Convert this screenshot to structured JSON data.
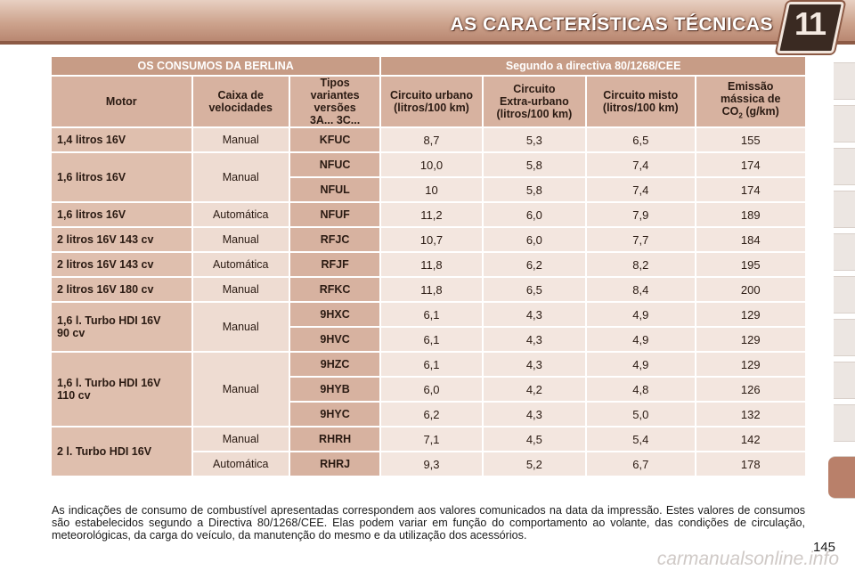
{
  "header": {
    "title": "AS CARACTERÍSTICAS TÉCNICAS",
    "chapter": "11"
  },
  "table": {
    "title_left": "OS CONSUMOS DA BERLINA",
    "title_right": "Segundo a directiva 80/1268/CEE",
    "columns": [
      "Motor",
      {
        "l1": "Caixa de",
        "l2": "velocidades"
      },
      {
        "l1": "Tipos",
        "l2": "variantes",
        "l3": "versões",
        "l4": "3A... 3C..."
      },
      {
        "l1": "Circuito urbano",
        "l2": "(litros/100 km)"
      },
      {
        "l1": "Circuito",
        "l2": "Extra-urbano",
        "l3": "(litros/100 km)"
      },
      {
        "l1": "Circuito misto",
        "l2": "(litros/100 km)"
      },
      {
        "l1": "Emissão",
        "l2": "mássica de",
        "l3a": "CO",
        "sub": "2",
        "l3b": " (g/km)"
      }
    ],
    "rows": [
      {
        "motor": "1,4 litros 16V",
        "caixa": "Manual",
        "code": "KFUC",
        "urbano": "8,7",
        "extra": "5,3",
        "misto": "6,5",
        "co2": "155"
      },
      {
        "motor": "1,6 litros 16V",
        "caixa": "Manual",
        "code": "NFUC",
        "urbano": "10,0",
        "extra": "5,8",
        "misto": "7,4",
        "co2": "174"
      },
      {
        "code": "NFUL",
        "urbano": "10",
        "extra": "5,8",
        "misto": "7,4",
        "co2": "174"
      },
      {
        "motor": "1,6 litros 16V",
        "caixa": "Automática",
        "code": "NFUF",
        "urbano": "11,2",
        "extra": "6,0",
        "misto": "7,9",
        "co2": "189"
      },
      {
        "motor": "2 litros 16V 143 cv",
        "caixa": "Manual",
        "code": "RFJC",
        "urbano": "10,7",
        "extra": "6,0",
        "misto": "7,7",
        "co2": "184"
      },
      {
        "motor": "2 litros 16V 143 cv",
        "caixa": "Automática",
        "code": "RFJF",
        "urbano": "11,8",
        "extra": "6,2",
        "misto": "8,2",
        "co2": "195"
      },
      {
        "motor": "2 litros 16V 180 cv",
        "caixa": "Manual",
        "code": "RFKC",
        "urbano": "11,8",
        "extra": "6,5",
        "misto": "8,4",
        "co2": "200"
      },
      {
        "motor_l1": "1,6 l. Turbo HDI 16V",
        "motor_l2": "90 cv",
        "caixa": "Manual",
        "code": "9HXC",
        "urbano": "6,1",
        "extra": "4,3",
        "misto": "4,9",
        "co2": "129"
      },
      {
        "code": "9HVC",
        "urbano": "6,1",
        "extra": "4,3",
        "misto": "4,9",
        "co2": "129"
      },
      {
        "motor_l1": "1,6 l. Turbo HDI 16V",
        "motor_l2": "110 cv",
        "caixa": "Manual",
        "code": "9HZC",
        "urbano": "6,1",
        "extra": "4,3",
        "misto": "4,9",
        "co2": "129"
      },
      {
        "code": "9HYB",
        "urbano": "6,0",
        "extra": "4,2",
        "misto": "4,8",
        "co2": "126"
      },
      {
        "code": "9HYC",
        "urbano": "6,2",
        "extra": "4,3",
        "misto": "5,0",
        "co2": "132"
      },
      {
        "motor": "2 l. Turbo HDI 16V",
        "caixa": "Manual",
        "code": "RHRH",
        "urbano": "7,1",
        "extra": "4,5",
        "misto": "5,4",
        "co2": "142"
      },
      {
        "caixa": "Automática",
        "code": "RHRJ",
        "urbano": "9,3",
        "extra": "5,2",
        "misto": "6,7",
        "co2": "178"
      }
    ]
  },
  "note": "As indicações de consumo de combustível apresentadas correspondem aos valores comunicados na data da impressão. Estes valores de consumos são estabelecidos segundo a Directiva 80/1268/CEE. Elas podem variar em função do comportamento ao volante, das condições de circulação, meteorológicas, da carga do veículo, da manutenção do mesmo e da utilização dos acessórios.",
  "page_number": "145",
  "watermark": "carmanualsonline.info"
}
